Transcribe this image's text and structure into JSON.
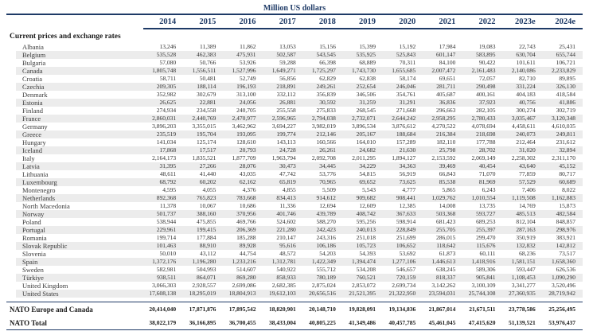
{
  "title": "Million US dollars",
  "section_title": "Current prices and exchange rates",
  "colors": {
    "accent_navy": "#1e3a66",
    "row_shade": "#ececec"
  },
  "table": {
    "years": [
      "2014",
      "2015",
      "2016",
      "2017",
      "2018",
      "2019",
      "2020",
      "2021",
      "2022",
      "2023e",
      "2024e"
    ],
    "rows": [
      {
        "label": "Albania",
        "values": [
          "13,246",
          "11,389",
          "11,862",
          "13,053",
          "15,156",
          "15,399",
          "15,192",
          "17,984",
          "19,083",
          "22,743",
          "25,431"
        ]
      },
      {
        "label": "Belgium",
        "values": [
          "535,528",
          "462,383",
          "475,931",
          "502,587",
          "543,545",
          "535,925",
          "525,843",
          "601,147",
          "583,895",
          "630,704",
          "655,744"
        ]
      },
      {
        "label": "Bulgaria",
        "values": [
          "57,080",
          "50,766",
          "53,926",
          "59,288",
          "66,398",
          "68,889",
          "70,311",
          "84,100",
          "90,422",
          "101,611",
          "106,721"
        ]
      },
      {
        "label": "Canada",
        "values": [
          "1,805,748",
          "1,556,511",
          "1,527,996",
          "1,649,271",
          "1,725,297",
          "1,743,730",
          "1,655,685",
          "2,007,472",
          "2,161,483",
          "2,140,086",
          "2,233,829"
        ]
      },
      {
        "label": "Croatia",
        "values": [
          "58,711",
          "50,481",
          "52,749",
          "56,856",
          "62,829",
          "62,838",
          "58,174",
          "69,651",
          "72,057",
          "82,710",
          "89,895"
        ]
      },
      {
        "label": "Czechia",
        "values": [
          "209,305",
          "188,114",
          "196,193",
          "218,891",
          "249,261",
          "252,654",
          "246,046",
          "281,711",
          "290,498",
          "331,224",
          "326,130"
        ]
      },
      {
        "label": "Denmark",
        "values": [
          "352,982",
          "302,679",
          "313,100",
          "332,112",
          "356,839",
          "346,506",
          "354,761",
          "405,687",
          "400,161",
          "404,183",
          "418,584"
        ]
      },
      {
        "label": "Estonia",
        "values": [
          "26,625",
          "22,881",
          "24,056",
          "26,881",
          "30,592",
          "31,259",
          "31,291",
          "36,836",
          "37,923",
          "40,756",
          "41,886"
        ]
      },
      {
        "label": "Finland",
        "values": [
          "274,934",
          "234,558",
          "240,705",
          "255,558",
          "275,833",
          "268,545",
          "271,668",
          "296,663",
          "282,105",
          "300,274",
          "302,719"
        ]
      },
      {
        "label": "France",
        "values": [
          "2,860,031",
          "2,440,769",
          "2,470,977",
          "2,596,965",
          "2,794,038",
          "2,732,071",
          "2,644,242",
          "2,958,295",
          "2,780,433",
          "3,035,467",
          "3,120,348"
        ]
      },
      {
        "label": "Germany",
        "values": [
          "3,896,203",
          "3,355,015",
          "3,462,962",
          "3,694,227",
          "3,982,019",
          "3,896,534",
          "3,876,612",
          "4,270,522",
          "4,078,694",
          "4,458,611",
          "4,610,035"
        ]
      },
      {
        "label": "Greece",
        "values": [
          "235,519",
          "195,704",
          "193,095",
          "199,774",
          "212,146",
          "205,167",
          "188,684",
          "216,384",
          "218,698",
          "240,073",
          "249,811"
        ]
      },
      {
        "label": "Hungary",
        "values": [
          "141,034",
          "125,174",
          "128,610",
          "143,113",
          "160,566",
          "164,010",
          "157,289",
          "182,110",
          "177,788",
          "212,464",
          "231,612"
        ]
      },
      {
        "label": "Iceland",
        "values": [
          "17,868",
          "17,517",
          "20,793",
          "24,728",
          "26,261",
          "24,682",
          "21,630",
          "25,798",
          "28,702",
          "31,020",
          "32,894"
        ]
      },
      {
        "label": "Italy",
        "values": [
          "2,164,173",
          "1,835,521",
          "1,877,709",
          "1,963,794",
          "2,092,708",
          "2,011,295",
          "1,894,127",
          "2,153,592",
          "2,069,149",
          "2,258,302",
          "2,311,170"
        ]
      },
      {
        "label": "Latvia",
        "values": [
          "31,395",
          "27,266",
          "28,076",
          "30,473",
          "34,445",
          "34,229",
          "34,363",
          "39,469",
          "40,454",
          "43,640",
          "45,152"
        ]
      },
      {
        "label": "Lithuania",
        "values": [
          "48,611",
          "41,440",
          "43,035",
          "47,742",
          "53,776",
          "54,815",
          "56,919",
          "66,843",
          "71,070",
          "77,859",
          "80,717"
        ]
      },
      {
        "label": "Luxembourg",
        "values": [
          "68,792",
          "60,202",
          "62,162",
          "65,819",
          "70,965",
          "69,652",
          "73,625",
          "85,538",
          "81,969",
          "57,529",
          "60,689"
        ]
      },
      {
        "label": "Montenegro",
        "values": [
          "4,595",
          "4,055",
          "4,376",
          "4,855",
          "5,509",
          "5,543",
          "4,777",
          "5,865",
          "6,243",
          "7,406",
          "8,022"
        ]
      },
      {
        "label": "Netherlands",
        "values": [
          "892,368",
          "765,823",
          "783,668",
          "834,413",
          "914,612",
          "909,682",
          "908,441",
          "1,029,762",
          "1,010,554",
          "1,119,508",
          "1,162,883"
        ]
      },
      {
        "label": "North Macedonia",
        "values": [
          "11,378",
          "10,067",
          "10,686",
          "11,336",
          "12,694",
          "12,609",
          "12,385",
          "14,008",
          "13,735",
          "14,769",
          "15,873"
        ]
      },
      {
        "label": "Norway",
        "values": [
          "501,737",
          "388,160",
          "370,956",
          "401,746",
          "439,789",
          "408,742",
          "367,633",
          "503,368",
          "593,727",
          "485,513",
          "482,584"
        ]
      },
      {
        "label": "Poland",
        "values": [
          "538,944",
          "475,855",
          "469,766",
          "524,602",
          "588,270",
          "595,256",
          "598,914",
          "681,423",
          "689,253",
          "812,104",
          "848,857"
        ]
      },
      {
        "label": "Portugal",
        "values": [
          "229,961",
          "199,415",
          "206,369",
          "221,280",
          "242,423",
          "240,013",
          "228,849",
          "255,705",
          "255,397",
          "287,163",
          "298,976"
        ]
      },
      {
        "label": "Romania",
        "values": [
          "199,714",
          "177,884",
          "185,288",
          "210,147",
          "243,316",
          "251,018",
          "251,699",
          "286,015",
          "299,470",
          "350,919",
          "383,921"
        ]
      },
      {
        "label": "Slovak Republic",
        "values": [
          "101,463",
          "88,910",
          "89,928",
          "95,616",
          "106,186",
          "105,723",
          "106,652",
          "118,642",
          "115,676",
          "132,832",
          "142,812"
        ]
      },
      {
        "label": "Slovenia",
        "values": [
          "50,010",
          "43,112",
          "44,754",
          "48,572",
          "54,203",
          "54,393",
          "53,692",
          "61,873",
          "60,111",
          "68,236",
          "73,517"
        ]
      },
      {
        "label": "Spain",
        "values": [
          "1,372,176",
          "1,196,280",
          "1,233,216",
          "1,312,781",
          "1,422,349",
          "1,394,474",
          "1,277,106",
          "1,446,613",
          "1,418,916",
          "1,581,151",
          "1,658,360"
        ]
      },
      {
        "label": "Sweden",
        "values": [
          "582,981",
          "504,993",
          "514,607",
          "540,922",
          "555,712",
          "534,208",
          "546,657",
          "638,245",
          "589,306",
          "593,447",
          "626,536"
        ]
      },
      {
        "label": "Türkiye",
        "values": [
          "938,511",
          "864,071",
          "869,280",
          "858,933",
          "780,189",
          "760,521",
          "720,159",
          "818,337",
          "905,841",
          "1,108,453",
          "1,090,290"
        ]
      },
      {
        "label": "United Kingdom",
        "values": [
          "3,066,303",
          "2,928,557",
          "2,699,086",
          "2,682,385",
          "2,875,024",
          "2,853,072",
          "2,699,734",
          "3,142,262",
          "3,100,109",
          "3,341,277",
          "3,520,496"
        ]
      },
      {
        "label": "United States",
        "values": [
          "17,608,138",
          "18,295,019",
          "18,804,913",
          "19,612,103",
          "20,656,516",
          "21,521,395",
          "21,322,950",
          "23,594,031",
          "25,744,108",
          "27,360,935",
          "28,719,942"
        ]
      }
    ],
    "summary_rows": [
      {
        "label": "NATO Europe and Canada",
        "values": [
          "20,414,040",
          "17,871,876",
          "17,895,542",
          "18,820,901",
          "20,148,710",
          "19,828,091",
          "19,134,836",
          "21,867,014",
          "21,671,511",
          "23,778,586",
          "25,256,495"
        ]
      },
      {
        "label": "NATO Total",
        "values": [
          "38,022,179",
          "36,166,895",
          "36,700,455",
          "38,433,004",
          "40,805,225",
          "41,349,486",
          "40,457,785",
          "45,461,045",
          "47,415,620",
          "51,139,521",
          "53,976,437"
        ]
      }
    ]
  }
}
